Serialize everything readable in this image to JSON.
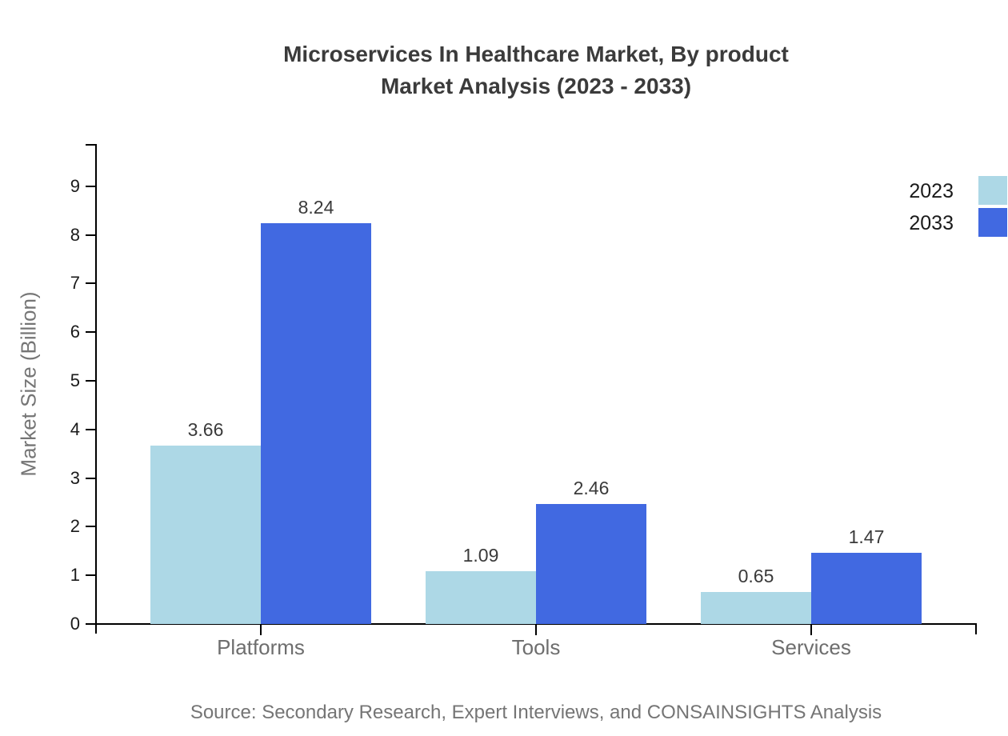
{
  "chart_data": {
    "type": "bar",
    "title_line1": "Microservices In Healthcare Market, By product",
    "title_line2": "Market Analysis (2023 - 2033)",
    "categories": [
      "Platforms",
      "Tools",
      "Services"
    ],
    "series": [
      {
        "name": "2023",
        "color": "#ADD8E6",
        "values": [
          3.66,
          1.09,
          0.65
        ]
      },
      {
        "name": "2033",
        "color": "#4169E1",
        "values": [
          8.24,
          2.46,
          1.47
        ]
      }
    ],
    "value_labels": [
      [
        "3.66",
        "1.09",
        "0.65"
      ],
      [
        "8.24",
        "2.46",
        "1.47"
      ]
    ],
    "ylabel": "Market Size (Billion)",
    "ylim": [
      0,
      9.85
    ],
    "yticks": [
      "0",
      "1",
      "2",
      "3",
      "4",
      "5",
      "6",
      "7",
      "8",
      "9"
    ],
    "grid": false,
    "legend_position": "top-right",
    "source": "Source: Secondary Research, Expert Interviews, and CONSAINSIGHTS Analysis"
  },
  "colors": {
    "background": "#ffffff",
    "title": "#3b3b3b",
    "tick_label": "#1a1a1a",
    "category_label": "#6e6e6e",
    "axis_label": "#757575",
    "source_text": "#757575",
    "axis_line": "#000000",
    "value_label": "#3a3a3a"
  }
}
